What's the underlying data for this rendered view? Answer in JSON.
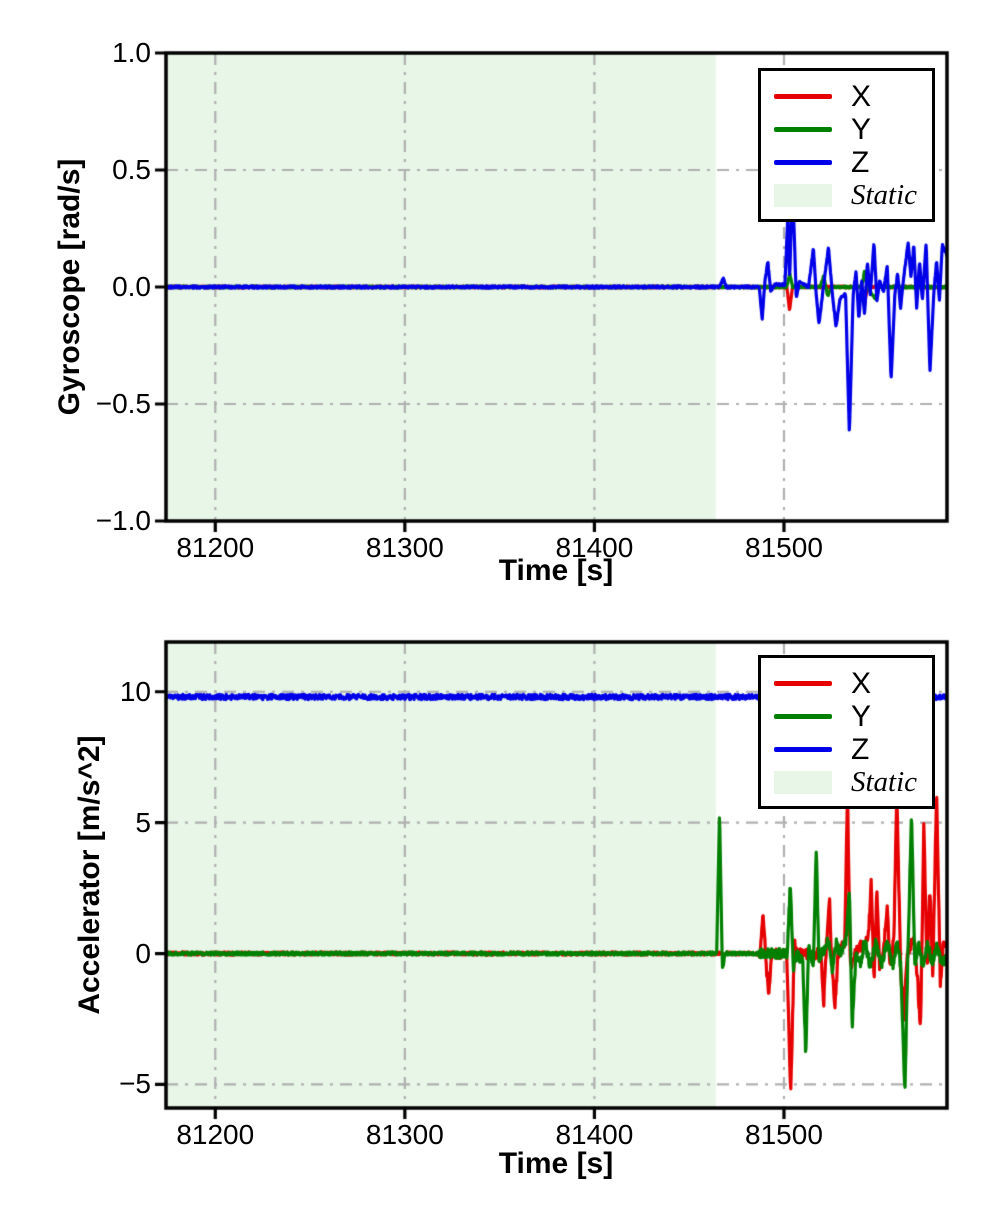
{
  "figure": {
    "background": "#ffffff"
  },
  "chart_data": [
    {
      "type": "line",
      "title": "",
      "xlabel": "Time [s]",
      "ylabel": "Gyroscope [rad/s]",
      "xlim": [
        81174,
        81586
      ],
      "ylim": [
        -1.0,
        1.0
      ],
      "xticks": [
        {
          "value": 81200,
          "label": "81200"
        },
        {
          "value": 81300,
          "label": "81300"
        },
        {
          "value": 81400,
          "label": "81400"
        },
        {
          "value": 81500,
          "label": "81500"
        }
      ],
      "yticks": [
        {
          "value": 1.0,
          "label": "1.0"
        },
        {
          "value": 0.5,
          "label": "0.5"
        },
        {
          "value": 0.0,
          "label": "0.0"
        },
        {
          "value": -0.5,
          "label": "−0.5"
        },
        {
          "value": -1.0,
          "label": "−1.0"
        }
      ],
      "grid": {
        "style": "dash-dot",
        "color": "#b0b0b0"
      },
      "static_region": {
        "label": "Static",
        "start": 81174,
        "end": 81464,
        "color": "#e7f6e7"
      },
      "legend": {
        "position": "upper-right",
        "entries": [
          {
            "label": "X",
            "color": "#e60000",
            "swatch": "line",
            "italic": false
          },
          {
            "label": "Y",
            "color": "#008000",
            "swatch": "line",
            "italic": false
          },
          {
            "label": "Z",
            "color": "#0000e8",
            "swatch": "line",
            "italic": false
          },
          {
            "label": "Static",
            "color": "#e7f6e7",
            "swatch": "patch",
            "italic": true
          }
        ]
      },
      "series": [
        {
          "name": "X",
          "color": "#e60000",
          "noise": 0.004,
          "keypoints": [
            [
              81170,
              0
            ],
            [
              81501.5,
              0
            ],
            [
              81503,
              -0.1
            ],
            [
              81504.5,
              0
            ],
            [
              81541,
              0
            ],
            [
              81542.5,
              -0.08
            ],
            [
              81544,
              0
            ],
            [
              81590,
              0
            ]
          ]
        },
        {
          "name": "Y",
          "color": "#008000",
          "noise": 0.004,
          "keypoints": [
            [
              81170,
              0
            ],
            [
              81501.5,
              0
            ],
            [
              81503,
              0.06
            ],
            [
              81504.5,
              0
            ],
            [
              81519,
              0
            ],
            [
              81521,
              0.05
            ],
            [
              81523,
              -0.04
            ],
            [
              81525,
              0
            ],
            [
              81541,
              0
            ],
            [
              81542.5,
              0.07
            ],
            [
              81544,
              0
            ],
            [
              81548,
              -0.05
            ],
            [
              81550,
              0
            ],
            [
              81590,
              0
            ]
          ]
        },
        {
          "name": "Z",
          "color": "#0000e8",
          "noise": 0.005,
          "keypoints": [
            [
              81170,
              0
            ],
            [
              81466,
              0
            ],
            [
              81468,
              0.035
            ],
            [
              81469.5,
              0
            ],
            [
              81487,
              0
            ],
            [
              81488.5,
              -0.14
            ],
            [
              81490,
              0.03
            ],
            [
              81491.5,
              0.11
            ],
            [
              81493,
              -0.02
            ],
            [
              81495,
              0.01
            ],
            [
              81500.5,
              0.01
            ],
            [
              81502,
              0.3
            ],
            [
              81503,
              0.03
            ],
            [
              81504.5,
              0.46
            ],
            [
              81506.5,
              -0.05
            ],
            [
              81508,
              0.02
            ],
            [
              81513,
              0
            ],
            [
              81515.5,
              0.17
            ],
            [
              81517,
              -0.03
            ],
            [
              81518.5,
              -0.16
            ],
            [
              81520.5,
              -0.02
            ],
            [
              81523.5,
              0.17
            ],
            [
              81525.5,
              -0.03
            ],
            [
              81527.5,
              -0.17
            ],
            [
              81529.5,
              -0.05
            ],
            [
              81532.5,
              -0.03
            ],
            [
              81534.5,
              -0.63
            ],
            [
              81536.5,
              -0.03
            ],
            [
              81538,
              0.07
            ],
            [
              81539.5,
              -0.14
            ],
            [
              81541,
              0.03
            ],
            [
              81542.5,
              -0.12
            ],
            [
              81544,
              0.11
            ],
            [
              81545.5,
              -0.03
            ],
            [
              81547.5,
              0.19
            ],
            [
              81549,
              -0.06
            ],
            [
              81550.5,
              0.03
            ],
            [
              81552.5,
              -0.02
            ],
            [
              81554.5,
              0.09
            ],
            [
              81556.5,
              -0.4
            ],
            [
              81558.5,
              -0.03
            ],
            [
              81560,
              0.06
            ],
            [
              81561.5,
              -0.09
            ],
            [
              81563,
              0.03
            ],
            [
              81565.5,
              0.19
            ],
            [
              81567,
              0.04
            ],
            [
              81568.5,
              0.18
            ],
            [
              81570,
              -0.09
            ],
            [
              81571.5,
              0.11
            ],
            [
              81573,
              -0.06
            ],
            [
              81575,
              0.19
            ],
            [
              81577,
              -0.37
            ],
            [
              81579,
              -0.03
            ],
            [
              81580.5,
              0.11
            ],
            [
              81582,
              -0.06
            ],
            [
              81583.5,
              0.18
            ],
            [
              81590,
              0.06
            ]
          ]
        }
      ]
    },
    {
      "type": "line",
      "title": "",
      "xlabel": "Time [s]",
      "ylabel": "Accelerator [m/s^2]",
      "xlim": [
        81174,
        81586
      ],
      "ylim": [
        -5.9,
        11.9
      ],
      "xticks": [
        {
          "value": 81200,
          "label": "81200"
        },
        {
          "value": 81300,
          "label": "81300"
        },
        {
          "value": 81400,
          "label": "81400"
        },
        {
          "value": 81500,
          "label": "81500"
        }
      ],
      "yticks": [
        {
          "value": 10,
          "label": "10"
        },
        {
          "value": 5,
          "label": "5"
        },
        {
          "value": 0,
          "label": "0"
        },
        {
          "value": -5,
          "label": "−5"
        }
      ],
      "grid": {
        "style": "dash-dot",
        "color": "#b0b0b0"
      },
      "static_region": {
        "label": "Static",
        "start": 81174,
        "end": 81464,
        "color": "#e7f6e7"
      },
      "legend": {
        "position": "upper-right",
        "entries": [
          {
            "label": "X",
            "color": "#e60000",
            "swatch": "line",
            "italic": false
          },
          {
            "label": "Y",
            "color": "#008000",
            "swatch": "line",
            "italic": false
          },
          {
            "label": "Z",
            "color": "#0000e8",
            "swatch": "line",
            "italic": false
          },
          {
            "label": "Static",
            "color": "#e7f6e7",
            "swatch": "patch",
            "italic": true
          }
        ]
      },
      "series": [
        {
          "name": "X",
          "color": "#e60000",
          "noise": 0.06,
          "noise_dynamic": 0.2,
          "dynamic_from": 81487,
          "keypoints": [
            [
              81170,
              0
            ],
            [
              81487.5,
              0
            ],
            [
              81489,
              1.6
            ],
            [
              81490.5,
              -0.4
            ],
            [
              81492,
              -1.45
            ],
            [
              81493.5,
              0
            ],
            [
              81501.5,
              0
            ],
            [
              81503.5,
              -5.5
            ],
            [
              81505.5,
              0.4
            ],
            [
              81507,
              0
            ],
            [
              81519.5,
              0
            ],
            [
              81521,
              -1.9
            ],
            [
              81522.5,
              0.5
            ],
            [
              81524,
              2.1
            ],
            [
              81525.5,
              -0.8
            ],
            [
              81527,
              -2.0
            ],
            [
              81528.5,
              0
            ],
            [
              81532,
              0.4
            ],
            [
              81533.5,
              6.3
            ],
            [
              81535,
              -0.6
            ],
            [
              81537,
              0
            ],
            [
              81544.5,
              0.6
            ],
            [
              81546,
              2.7
            ],
            [
              81547.5,
              -1.15
            ],
            [
              81549,
              2.6
            ],
            [
              81550.5,
              -0.6
            ],
            [
              81552.5,
              0
            ],
            [
              81554.5,
              2.0
            ],
            [
              81556,
              -0.6
            ],
            [
              81558,
              0.6
            ],
            [
              81559.5,
              6.2
            ],
            [
              81561.5,
              -0.4
            ],
            [
              81563,
              -2.6
            ],
            [
              81565,
              0
            ],
            [
              81568.5,
              0.6
            ],
            [
              81570.5,
              -1.0
            ],
            [
              81572,
              -3.05
            ],
            [
              81573.8,
              5.0
            ],
            [
              81575.5,
              -0.8
            ],
            [
              81577,
              2.5
            ],
            [
              81578.5,
              -1.0
            ],
            [
              81580.5,
              6.3
            ],
            [
              81582.5,
              -1.2
            ],
            [
              81584,
              0.4
            ],
            [
              81590,
              0.2
            ]
          ]
        },
        {
          "name": "Y",
          "color": "#008000",
          "noise": 0.06,
          "noise_dynamic": 0.2,
          "dynamic_from": 81487,
          "keypoints": [
            [
              81170,
              0
            ],
            [
              81464.5,
              0
            ],
            [
              81466,
              5.4
            ],
            [
              81467.5,
              -0.6
            ],
            [
              81469,
              0
            ],
            [
              81501.8,
              0
            ],
            [
              81503.3,
              2.7
            ],
            [
              81505,
              -0.5
            ],
            [
              81507,
              0
            ],
            [
              81510,
              -0.4
            ],
            [
              81511.5,
              -3.85
            ],
            [
              81513,
              0.4
            ],
            [
              81515.5,
              -0.5
            ],
            [
              81517,
              4.1
            ],
            [
              81518.5,
              -0.5
            ],
            [
              81520,
              0
            ],
            [
              81523.5,
              0.5
            ],
            [
              81525.5,
              -0.7
            ],
            [
              81527.5,
              0.4
            ],
            [
              81529.5,
              0
            ],
            [
              81533,
              0.6
            ],
            [
              81534.5,
              2.5
            ],
            [
              81536,
              -2.75
            ],
            [
              81538,
              0
            ],
            [
              81540.5,
              -0.4
            ],
            [
              81542.5,
              0.5
            ],
            [
              81545.5,
              -0.5
            ],
            [
              81548.5,
              0.4
            ],
            [
              81551.5,
              -0.4
            ],
            [
              81554.5,
              0.4
            ],
            [
              81557.5,
              -0.5
            ],
            [
              81559.5,
              0.4
            ],
            [
              81561.5,
              -0.4
            ],
            [
              81563.8,
              -5.4
            ],
            [
              81565.5,
              0.4
            ],
            [
              81567.3,
              5.3
            ],
            [
              81569,
              -0.5
            ],
            [
              81571,
              0.4
            ],
            [
              81573.5,
              -0.6
            ],
            [
              81575.5,
              0.4
            ],
            [
              81578.5,
              -0.4
            ],
            [
              81580.5,
              0.3
            ],
            [
              81583,
              -0.3
            ],
            [
              81590,
              0
            ]
          ]
        },
        {
          "name": "Z",
          "color": "#0000e8",
          "noise": 0.1,
          "keypoints": [
            [
              81170,
              9.8
            ],
            [
              81590,
              9.8
            ]
          ]
        }
      ]
    }
  ]
}
